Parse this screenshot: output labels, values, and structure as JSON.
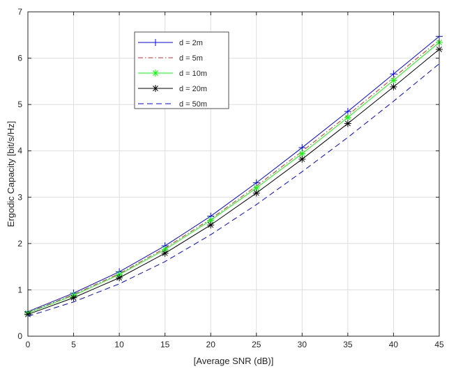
{
  "chart_data": {
    "type": "line",
    "title": "",
    "xlabel": "[Average SNR (dB)]",
    "ylabel": "Ergodic Capacity [bit/s/Hz]",
    "xlim": [
      0,
      45
    ],
    "ylim": [
      0,
      7
    ],
    "xticks": [
      0,
      5,
      10,
      15,
      20,
      25,
      30,
      35,
      40,
      45
    ],
    "yticks": [
      0,
      1,
      2,
      3,
      4,
      5,
      6,
      7
    ],
    "grid": true,
    "legend_position": "upper-left-center",
    "x": [
      0,
      5,
      10,
      15,
      20,
      25,
      30,
      35,
      40,
      45
    ],
    "series": [
      {
        "name": "d = 2m",
        "color": "#0000ff",
        "line": "solid",
        "marker": "plus",
        "values": [
          0.53,
          0.93,
          1.39,
          1.95,
          2.59,
          3.31,
          4.07,
          4.85,
          5.66,
          6.47
        ]
      },
      {
        "name": "d = 5m",
        "color": "#d62728",
        "line": "dashdot",
        "marker": "none",
        "values": [
          0.51,
          0.9,
          1.35,
          1.9,
          2.53,
          3.24,
          3.99,
          4.77,
          5.58,
          6.39
        ]
      },
      {
        "name": "d = 10m",
        "color": "#00ff00",
        "line": "solid",
        "marker": "asterisk",
        "values": [
          0.5,
          0.88,
          1.33,
          1.87,
          2.5,
          3.2,
          3.94,
          4.72,
          5.52,
          6.34
        ]
      },
      {
        "name": "d = 20m",
        "color": "#000000",
        "line": "solid",
        "marker": "asterisk",
        "values": [
          0.47,
          0.83,
          1.26,
          1.79,
          2.4,
          3.09,
          3.82,
          4.59,
          5.38,
          6.19
        ]
      },
      {
        "name": "d = 50m",
        "color": "#0000ff",
        "line": "dashed",
        "marker": "none",
        "values": [
          0.43,
          0.74,
          1.13,
          1.61,
          2.19,
          2.84,
          3.55,
          4.29,
          5.07,
          5.88
        ]
      }
    ]
  }
}
